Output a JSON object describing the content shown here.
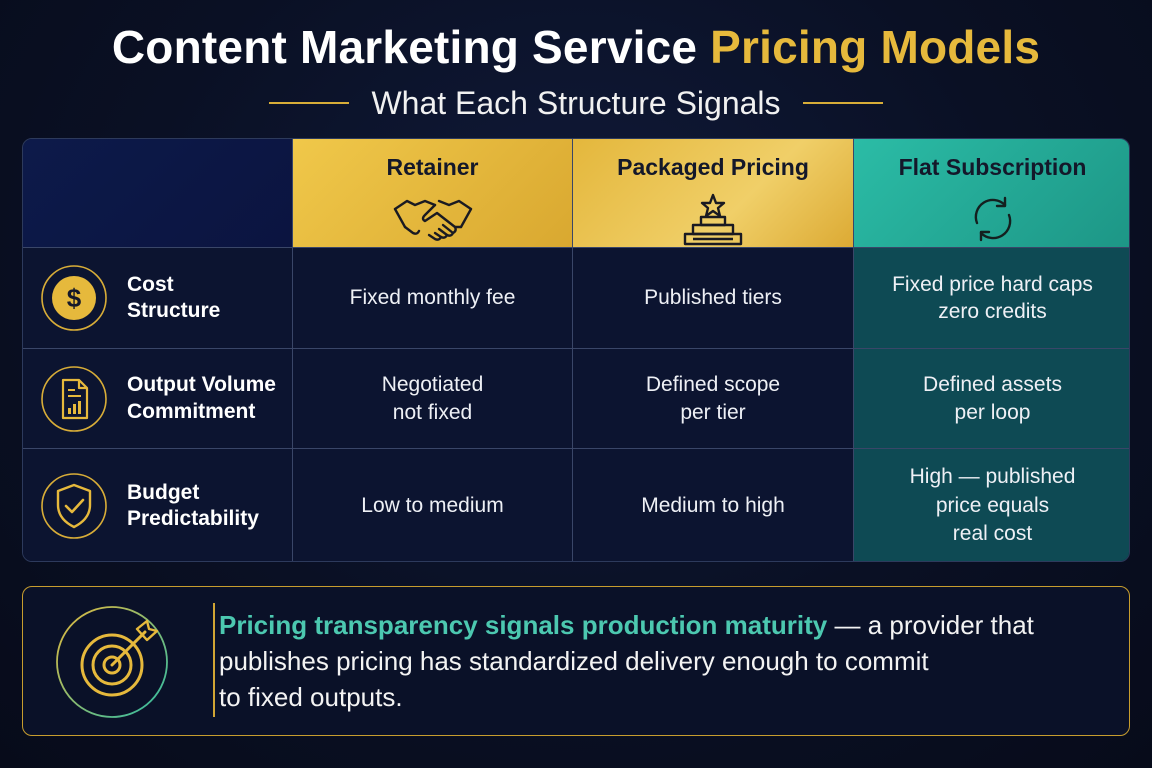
{
  "title": {
    "main": "Content Marketing Service",
    "accent": "Pricing Models"
  },
  "subtitle": "What Each Structure Signals",
  "columns": [
    {
      "label": "Retainer",
      "icon": "handshake-icon"
    },
    {
      "label": "Packaged Pricing",
      "icon": "tiered-stack-icon"
    },
    {
      "label": "Flat Subscription",
      "icon": "refresh-cycle-icon"
    }
  ],
  "rows": [
    {
      "label_line1": "Cost",
      "label_line2": "Structure",
      "icon": "dollar-coin-icon",
      "cells": [
        {
          "line1": "Fixed monthly fee",
          "line2": "",
          "line3": ""
        },
        {
          "line1": "Published tiers",
          "line2": "",
          "line3": ""
        },
        {
          "line1": "Fixed price hard caps",
          "line2": "zero credits",
          "line3": ""
        }
      ]
    },
    {
      "label_line1": "Output Volume",
      "label_line2": "Commitment",
      "icon": "document-chart-icon",
      "cells": [
        {
          "line1": "Negotiated",
          "line2": "not fixed",
          "line3": ""
        },
        {
          "line1": "Defined scope",
          "line2": "per tier",
          "line3": ""
        },
        {
          "line1": "Defined assets",
          "line2": "per loop",
          "line3": ""
        }
      ]
    },
    {
      "label_line1": "Budget",
      "label_line2": "Predictability",
      "icon": "shield-check-icon",
      "cells": [
        {
          "line1": "Low to medium",
          "line2": "",
          "line3": ""
        },
        {
          "line1": "Medium to high",
          "line2": "",
          "line3": ""
        },
        {
          "line1": "High — published",
          "line2": "price equals",
          "line3": "real cost"
        }
      ]
    }
  ],
  "note": {
    "icon": "target-arrow-icon",
    "highlight": "Pricing transparency signals production maturity",
    "line1_rest": " — a provider that",
    "line2": "publishes pricing has standardized delivery enough to commit",
    "line3": "to fixed outputs."
  },
  "colors": {
    "background": "#0a1024",
    "gold": "#e6b93c",
    "teal": "#2bbca6",
    "teal_column": "#0e4a54",
    "highlight_text": "#4cc8b0"
  }
}
